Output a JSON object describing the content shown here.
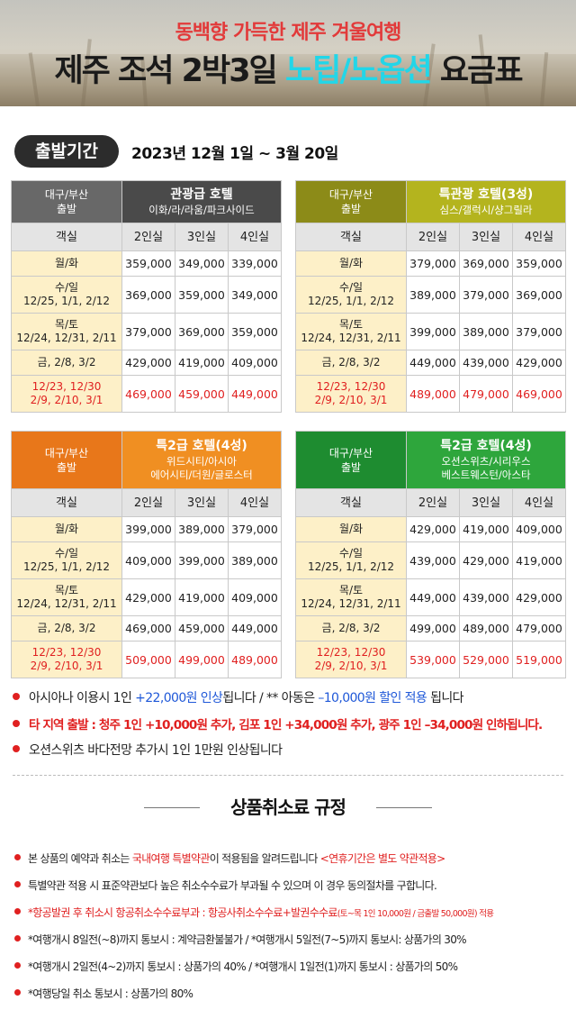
{
  "banner": {
    "subtitle": "동백향 가득한 제주 겨울여행",
    "title_prefix": "제주 조석 2박3일 ",
    "title_highlight": "노팁/노옵션",
    "title_suffix": " 요금표"
  },
  "period": {
    "label": "출발기간",
    "value": "2023년 12월 1일 ~ 3월 20일"
  },
  "column_headers": {
    "room": "객실",
    "c2": "2인실",
    "c3": "3인실",
    "c4": "4인실"
  },
  "tables": [
    {
      "depart_l1": "대구/부산",
      "depart_l2": "출발",
      "hotel": "관광급 호텔",
      "sub1": "이화/라/라움/파크사이드",
      "sub2": "",
      "rows": [
        {
          "l1": "월/화",
          "l2": "",
          "p": [
            "359,000",
            "349,000",
            "339,000"
          ]
        },
        {
          "l1": "수/일",
          "l2": "12/25, 1/1, 2/12",
          "p": [
            "369,000",
            "359,000",
            "349,000"
          ]
        },
        {
          "l1": "목/토",
          "l2": "12/24, 12/31, 2/11",
          "p": [
            "379,000",
            "369,000",
            "359,000"
          ]
        },
        {
          "l1": "금, 2/8, 3/2",
          "l2": "",
          "p": [
            "429,000",
            "419,000",
            "409,000"
          ]
        },
        {
          "l1": "12/23, 12/30",
          "l2": "2/9, 2/10, 3/1",
          "p": [
            "469,000",
            "459,000",
            "449,000"
          ]
        }
      ]
    },
    {
      "depart_l1": "대구/부산",
      "depart_l2": "출발",
      "hotel": "특관광 호텔(3성)",
      "sub1": "심스/갤럭시/샹그릴라",
      "sub2": "",
      "rows": [
        {
          "l1": "월/화",
          "l2": "",
          "p": [
            "379,000",
            "369,000",
            "359,000"
          ]
        },
        {
          "l1": "수/일",
          "l2": "12/25, 1/1, 2/12",
          "p": [
            "389,000",
            "379,000",
            "369,000"
          ]
        },
        {
          "l1": "목/토",
          "l2": "12/24, 12/31, 2/11",
          "p": [
            "399,000",
            "389,000",
            "379,000"
          ]
        },
        {
          "l1": "금, 2/8, 3/2",
          "l2": "",
          "p": [
            "449,000",
            "439,000",
            "429,000"
          ]
        },
        {
          "l1": "12/23, 12/30",
          "l2": "2/9, 2/10, 3/1",
          "p": [
            "489,000",
            "479,000",
            "469,000"
          ]
        }
      ]
    },
    {
      "depart_l1": "대구/부산",
      "depart_l2": "출발",
      "hotel": "특2급 호텔(4성)",
      "sub1": "위드시티/아시아",
      "sub2": "에어시티/더원/글로스터",
      "rows": [
        {
          "l1": "월/화",
          "l2": "",
          "p": [
            "399,000",
            "389,000",
            "379,000"
          ]
        },
        {
          "l1": "수/일",
          "l2": "12/25, 1/1, 2/12",
          "p": [
            "409,000",
            "399,000",
            "389,000"
          ]
        },
        {
          "l1": "목/토",
          "l2": "12/24, 12/31, 2/11",
          "p": [
            "429,000",
            "419,000",
            "409,000"
          ]
        },
        {
          "l1": "금, 2/8, 3/2",
          "l2": "",
          "p": [
            "469,000",
            "459,000",
            "449,000"
          ]
        },
        {
          "l1": "12/23, 12/30",
          "l2": "2/9, 2/10, 3/1",
          "p": [
            "509,000",
            "499,000",
            "489,000"
          ]
        }
      ]
    },
    {
      "depart_l1": "대구/부산",
      "depart_l2": "출발",
      "hotel": "특2급 호텔(4성)",
      "sub1": "오션스위츠/시리우스",
      "sub2": "베스트웨스턴/아스타",
      "rows": [
        {
          "l1": "월/화",
          "l2": "",
          "p": [
            "429,000",
            "419,000",
            "409,000"
          ]
        },
        {
          "l1": "수/일",
          "l2": "12/25, 1/1, 2/12",
          "p": [
            "439,000",
            "429,000",
            "419,000"
          ]
        },
        {
          "l1": "목/토",
          "l2": "12/24, 12/31, 2/11",
          "p": [
            "449,000",
            "439,000",
            "429,000"
          ]
        },
        {
          "l1": "금, 2/8, 3/2",
          "l2": "",
          "p": [
            "499,000",
            "489,000",
            "479,000"
          ]
        },
        {
          "l1": "12/23, 12/30",
          "l2": "2/9, 2/10, 3/1",
          "p": [
            "539,000",
            "529,000",
            "519,000"
          ]
        }
      ]
    }
  ],
  "notes": {
    "n1_a": "아시아나 이용시 1인 ",
    "n1_b": "+22,000원 인상",
    "n1_c": "됩니다 / ** 아동은 ",
    "n1_d": "–10,000원 할인 적용",
    "n1_e": " 됩니다",
    "n2": "타 지역 출발 : 청주 1인 +10,000원 추가, 김포 1인 +34,000원 추가, 광주 1인 –34,000원 인하됩니다.",
    "n3": "오션스위츠 바다전망 추가시 1인 1만원 인상됩니다"
  },
  "policy": {
    "title": "상품취소료 규정",
    "p1_a": "본 상품의 예약과 취소는 ",
    "p1_b": "국내여행 특별약관",
    "p1_c": "이 적용됨을 알려드립니다 ",
    "p1_d": "<연휴기간은 별도 약관적용>",
    "p2": "특별약관 적용 시 표준약관보다 높은 취소수수료가 부과될 수 있으며 이 경우 동의절차를 구합니다.",
    "p3_a": "*항공발권 후 취소시 항공취소수수료부과 : 항공사취소수수료+발권수수료",
    "p3_b": "(토~목 1인 10,000원 / 금출발 50,000원) 적용",
    "p4": "*여행개시 8일전(~8)까지 통보시 : 계약금환불불가 / *여행개시 5일전(7~5)까지 통보시: 상품가의 30%",
    "p5": "*여행개시 2일전(4~2)까지 통보시 : 상품가의 40% / *여행개시 1일전(1)까지 통보시 : 상품가의 50%",
    "p6": "*여행당일 취소 통보시 : 상품가의 80%"
  }
}
